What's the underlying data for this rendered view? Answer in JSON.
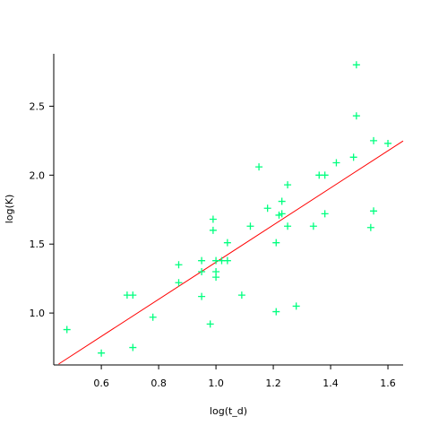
{
  "chart_data": {
    "type": "scatter",
    "x_label": "log(t_d)",
    "y_label": "log(K)",
    "x": [
      0.48,
      0.6,
      0.69,
      0.71,
      0.71,
      0.78,
      0.87,
      0.87,
      0.95,
      0.95,
      0.95,
      0.98,
      0.99,
      0.99,
      1.0,
      1.0,
      1.0,
      1.02,
      1.04,
      1.04,
      1.09,
      1.12,
      1.15,
      1.18,
      1.21,
      1.21,
      1.22,
      1.23,
      1.23,
      1.25,
      1.25,
      1.28,
      1.34,
      1.36,
      1.38,
      1.38,
      1.42,
      1.48,
      1.49,
      1.49,
      1.54,
      1.55,
      1.55,
      1.6
    ],
    "values": [
      0.88,
      0.71,
      1.13,
      1.13,
      0.75,
      0.97,
      1.35,
      1.22,
      1.12,
      1.38,
      1.3,
      0.92,
      1.68,
      1.6,
      1.38,
      1.3,
      1.26,
      1.38,
      1.51,
      1.38,
      1.13,
      1.63,
      2.06,
      1.76,
      1.01,
      1.51,
      1.71,
      1.81,
      1.72,
      1.93,
      1.63,
      1.05,
      1.63,
      2.0,
      2.0,
      1.72,
      2.09,
      2.13,
      2.8,
      2.43,
      1.62,
      1.74,
      2.25,
      2.23
    ],
    "color": "#00ff7f",
    "fit": {
      "slope": 1.346,
      "intercept": 0.023,
      "color": "#ff0000"
    },
    "xlim": [
      0.434,
      1.653
    ],
    "ylim": [
      0.63,
      2.88
    ],
    "xticks": [
      0.6,
      0.8,
      {
        "value": 1,
        "label": "1.0"
      },
      1.2,
      1.4,
      1.6
    ],
    "yticks": [
      {
        "value": 1,
        "label": "1.0"
      },
      1.5,
      {
        "value": 2,
        "label": "2.0"
      },
      2.5
    ]
  }
}
